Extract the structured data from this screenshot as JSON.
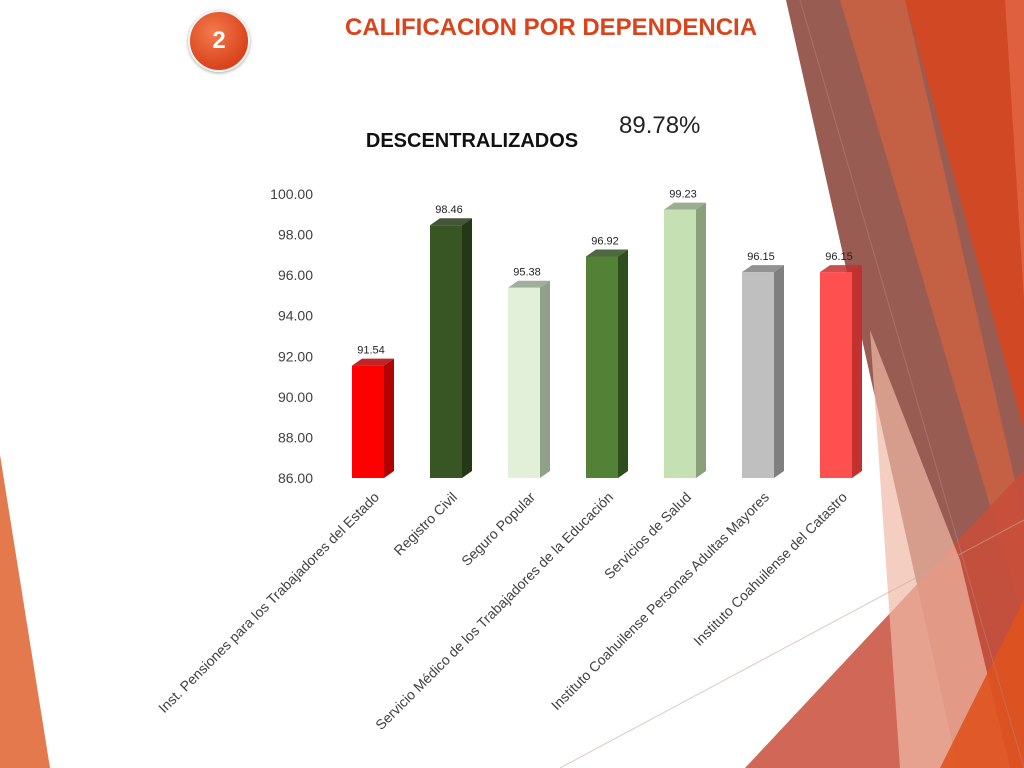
{
  "slide": {
    "badge_number": "2",
    "title": "CALIFICACION POR DEPENDENCIA",
    "overall_score": "89.78%",
    "accent_color": "#d9441c"
  },
  "chart_data": {
    "type": "bar",
    "title": "DESCENTRALIZADOS",
    "xlabel": "",
    "ylabel": "",
    "ylim": [
      86,
      100
    ],
    "yticks": [
      "100.00",
      "98.00",
      "96.00",
      "94.00",
      "92.00",
      "90.00",
      "88.00",
      "86.00"
    ],
    "grid": false,
    "legend": "none",
    "categories": [
      "Inst.  Pensiones para los Trabajadores del Estado",
      "Registro Civil",
      "Seguro Popular",
      "Servicio Médico de los Trabajadores de la Educación",
      "Servicios de Salud",
      "Instituto Coahuilense Personas Adultas Mayores",
      "Instituto Coahuilense del Catastro"
    ],
    "values": [
      91.54,
      98.46,
      95.38,
      96.92,
      99.23,
      96.15,
      96.15
    ],
    "value_labels": [
      "91.54",
      "98.46",
      "95.38",
      "96.92",
      "99.23",
      "96.15",
      "96.15"
    ],
    "bar_colors": [
      "#ff0000",
      "#375623",
      "#e2efd9",
      "#538135",
      "#c5e0b3",
      "#bfbfbf",
      "#ff5050"
    ],
    "bar_side_colors": [
      "#b30000",
      "#233816",
      "#8fa189",
      "#2f4e1d",
      "#8aa07b",
      "#7f7f7f",
      "#c23030"
    ]
  }
}
